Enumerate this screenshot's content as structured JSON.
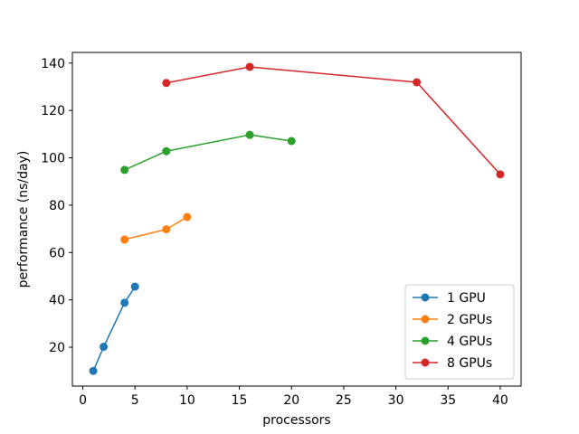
{
  "chart_data": {
    "type": "line",
    "title": "",
    "xlabel": "processors",
    "ylabel": "performance (ns/day)",
    "xlim": [
      -1.0,
      42.0
    ],
    "ylim": [
      3.6,
      144.5
    ],
    "xticks": [
      0,
      5,
      10,
      15,
      20,
      25,
      30,
      35,
      40
    ],
    "yticks": [
      20,
      40,
      60,
      80,
      100,
      120,
      140
    ],
    "grid": false,
    "legend_position": "lower-right",
    "series": [
      {
        "name": "1 GPU",
        "color": "#1f77b4",
        "x": [
          1,
          2,
          4,
          5
        ],
        "y": [
          10.0,
          20.2,
          38.8,
          45.6
        ]
      },
      {
        "name": "2 GPUs",
        "color": "#ff7f0e",
        "x": [
          4,
          8,
          10
        ],
        "y": [
          65.5,
          69.8,
          75.0
        ]
      },
      {
        "name": "4 GPUs",
        "color": "#2ca02c",
        "x": [
          4,
          8,
          16,
          20
        ],
        "y": [
          94.9,
          102.8,
          109.7,
          107.1
        ]
      },
      {
        "name": "8 GPUs",
        "color": "#d62728",
        "x": [
          8,
          16,
          32,
          40
        ],
        "y": [
          131.6,
          138.4,
          131.9,
          93.0
        ]
      }
    ]
  }
}
